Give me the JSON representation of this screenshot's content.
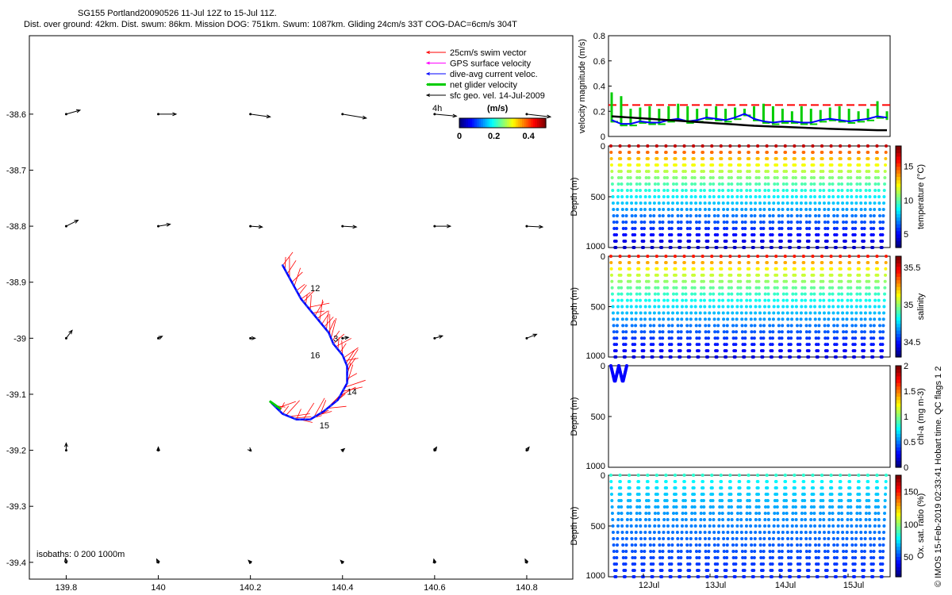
{
  "header": {
    "title": "SG155 Portland20090526 11-Jul 12Z to 15-Jul 11Z.",
    "stats": "Dist. over ground: 42km. Dist. swum: 86km. Mission DOG: 751km. Swum: 1087km. Gliding 24cm/s 33T COG-DAC=6cm/s 304T"
  },
  "credit": "© IMOS 15-Feb-2019 02:33:41 Hobart time. QC flags 1  2",
  "chart_data": [
    {
      "type": "map",
      "xticks": [
        "139.8",
        "140",
        "140.2",
        "140.4",
        "140.6",
        "140.8"
      ],
      "yticks": [
        "-38.6",
        "-38.7",
        "-38.8",
        "-38.9",
        "-39",
        "-39.1",
        "-39.2",
        "-39.3",
        "-39.4"
      ],
      "xlim": [
        139.72,
        140.9
      ],
      "ylim": [
        -39.43,
        -38.46
      ],
      "legend": {
        "position": "top-right",
        "entries": [
          {
            "label": "25cm/s swim vector",
            "color": "#ff0000"
          },
          {
            "label": "GPS surface velocity",
            "color": "#ff00ff"
          },
          {
            "label": "dive-avg current veloc.",
            "color": "#0000ff"
          },
          {
            "label": "net glider velocity",
            "color": "#00cc00"
          },
          {
            "label": "sfc geo. vel. 14-Jul-2009",
            "color": "#000000"
          }
        ]
      },
      "colorbar": {
        "label": "(m/s)",
        "prefix": "4h",
        "ticks": [
          "0",
          "0.2",
          "0.4"
        ],
        "range": [
          0,
          0.5
        ]
      },
      "isobaths": "isobaths: 0   200   1000m",
      "track_labels": [
        {
          "text": "12",
          "lon": 140.33,
          "lat": -38.91
        },
        {
          "text": "16",
          "lon": 140.33,
          "lat": -39.03
        },
        {
          "text": "3",
          "lon": 140.38,
          "lat": -39.0
        },
        {
          "text": "14",
          "lon": 140.41,
          "lat": -39.095
        },
        {
          "text": "15",
          "lon": 140.35,
          "lat": -39.155
        }
      ],
      "glider_track": [
        [
          140.27,
          -38.87
        ],
        [
          140.29,
          -38.9
        ],
        [
          140.31,
          -38.93
        ],
        [
          140.33,
          -38.95
        ],
        [
          140.35,
          -38.97
        ],
        [
          140.37,
          -38.99
        ],
        [
          140.38,
          -39.01
        ],
        [
          140.4,
          -39.03
        ],
        [
          140.41,
          -39.05
        ],
        [
          140.41,
          -39.08
        ],
        [
          140.39,
          -39.11
        ],
        [
          140.36,
          -39.13
        ],
        [
          140.33,
          -39.145
        ],
        [
          140.3,
          -39.145
        ],
        [
          140.27,
          -39.135
        ],
        [
          140.245,
          -39.115
        ]
      ],
      "geo_vectors": [
        {
          "lon": 139.8,
          "lat": -38.6,
          "u": 0.35,
          "v": 0.1
        },
        {
          "lon": 140.0,
          "lat": -38.6,
          "u": 0.45,
          "v": 0.0
        },
        {
          "lon": 140.2,
          "lat": -38.6,
          "u": 0.5,
          "v": -0.07
        },
        {
          "lon": 140.4,
          "lat": -38.6,
          "u": 0.6,
          "v": -0.1
        },
        {
          "lon": 140.6,
          "lat": -38.6,
          "u": 0.55,
          "v": -0.05
        },
        {
          "lon": 140.8,
          "lat": -38.6,
          "u": 0.6,
          "v": -0.07
        },
        {
          "lon": 139.8,
          "lat": -38.8,
          "u": 0.3,
          "v": 0.15
        },
        {
          "lon": 140.0,
          "lat": -38.8,
          "u": 0.3,
          "v": 0.05
        },
        {
          "lon": 140.2,
          "lat": -38.8,
          "u": 0.3,
          "v": -0.02
        },
        {
          "lon": 140.4,
          "lat": -38.8,
          "u": 0.35,
          "v": -0.02
        },
        {
          "lon": 140.6,
          "lat": -38.8,
          "u": 0.4,
          "v": 0.0
        },
        {
          "lon": 140.8,
          "lat": -38.8,
          "u": 0.4,
          "v": -0.02
        },
        {
          "lon": 139.8,
          "lat": -39.0,
          "u": 0.15,
          "v": 0.2
        },
        {
          "lon": 140.0,
          "lat": -39.0,
          "u": 0.1,
          "v": 0.05
        },
        {
          "lon": 140.2,
          "lat": -39.0,
          "u": 0.12,
          "v": 0.0
        },
        {
          "lon": 140.4,
          "lat": -39.0,
          "u": 0.15,
          "v": 0.02
        },
        {
          "lon": 140.6,
          "lat": -39.0,
          "u": 0.2,
          "v": 0.06
        },
        {
          "lon": 140.8,
          "lat": -39.0,
          "u": 0.25,
          "v": 0.1
        },
        {
          "lon": 139.8,
          "lat": -39.2,
          "u": 0.0,
          "v": 0.18
        },
        {
          "lon": 140.0,
          "lat": -39.2,
          "u": 0.0,
          "v": 0.08
        },
        {
          "lon": 140.2,
          "lat": -39.2,
          "u": 0.02,
          "v": -0.02
        },
        {
          "lon": 140.4,
          "lat": -39.2,
          "u": 0.05,
          "v": 0.04
        },
        {
          "lon": 140.6,
          "lat": -39.2,
          "u": 0.05,
          "v": 0.08
        },
        {
          "lon": 140.8,
          "lat": -39.2,
          "u": 0.06,
          "v": 0.08
        },
        {
          "lon": 139.8,
          "lat": -39.4,
          "u": -0.02,
          "v": 0.1
        },
        {
          "lon": 140.0,
          "lat": -39.4,
          "u": -0.04,
          "v": 0.08
        },
        {
          "lon": 140.2,
          "lat": -39.4,
          "u": -0.05,
          "v": 0.05
        },
        {
          "lon": 140.4,
          "lat": -39.4,
          "u": -0.05,
          "v": 0.05
        },
        {
          "lon": 140.6,
          "lat": -39.4,
          "u": -0.02,
          "v": 0.08
        },
        {
          "lon": 140.8,
          "lat": -39.4,
          "u": -0.04,
          "v": 0.08
        }
      ]
    },
    {
      "type": "line",
      "ylabel": "velocity magnitude (m/s)",
      "ylim": [
        0,
        0.8
      ],
      "yticks": [
        "0",
        "0.2",
        "0.4",
        "0.6",
        "0.8"
      ],
      "reference_level": 0.25,
      "series": [
        {
          "name": "dive-avg current",
          "color": "#0000ff",
          "values": [
            0.13,
            0.1,
            0.1,
            0.12,
            0.11,
            0.11,
            0.13,
            0.14,
            0.12,
            0.13,
            0.15,
            0.14,
            0.13,
            0.15,
            0.18,
            0.14,
            0.12,
            0.11,
            0.12,
            0.12,
            0.11,
            0.11,
            0.13,
            0.14,
            0.13,
            0.12,
            0.13,
            0.14,
            0.16,
            0.15
          ]
        },
        {
          "name": "geostrophic",
          "color": "#000000",
          "values": [
            0.16,
            0.155,
            0.15,
            0.145,
            0.14,
            0.135,
            0.13,
            0.125,
            0.12,
            0.115,
            0.11,
            0.105,
            0.1,
            0.095,
            0.09,
            0.085,
            0.082,
            0.079,
            0.076,
            0.073,
            0.07,
            0.067,
            0.064,
            0.061,
            0.058,
            0.056,
            0.054,
            0.052,
            0.05,
            0.05
          ]
        },
        {
          "name": "net glider velocity",
          "color": "#00cc00",
          "values": [
            0.35,
            0.32,
            0.22,
            0.23,
            0.24,
            0.22,
            0.24,
            0.26,
            0.24,
            0.22,
            0.22,
            0.24,
            0.22,
            0.23,
            0.22,
            0.24,
            0.26,
            0.24,
            0.22,
            0.2,
            0.24,
            0.22,
            0.21,
            0.23,
            0.24,
            0.22,
            0.2,
            0.22,
            0.28,
            0.2
          ]
        }
      ]
    },
    {
      "type": "scatter",
      "ylabel": "Depth (m)",
      "cbar_label": "temperature (°C)",
      "ylim": [
        0,
        1000
      ],
      "yticks": [
        "0",
        "500",
        "1000"
      ],
      "cbar_ticks": [
        "5",
        "10",
        "15"
      ],
      "cbar_range": [
        3,
        18
      ],
      "surface_value": 17,
      "bottom_value": 4,
      "max_depth": 1000,
      "n_dives": 30
    },
    {
      "type": "scatter",
      "ylabel": "Depth (m)",
      "cbar_label": "salinity",
      "ylim": [
        0,
        1000
      ],
      "yticks": [
        "0",
        "500",
        "1000"
      ],
      "cbar_ticks": [
        "34.5",
        "35",
        "35.5"
      ],
      "cbar_range": [
        34.3,
        35.65
      ],
      "surface_value": 35.45,
      "bottom_value": 34.42,
      "max_depth": 1000,
      "n_dives": 30
    },
    {
      "type": "scatter",
      "ylabel": "Depth (m)",
      "cbar_label": "chl-a (mg m-3)",
      "ylim": [
        0,
        1000
      ],
      "yticks": [
        "0",
        "500",
        "1000"
      ],
      "cbar_ticks": [
        "0",
        "0.5",
        "1",
        "1.5",
        "2"
      ],
      "cbar_range": [
        0,
        2
      ],
      "surface_value": 0.25,
      "bottom_value": 0.25,
      "max_depth": 150,
      "n_dives": 2
    },
    {
      "type": "scatter",
      "ylabel": "Depth (m)",
      "cbar_label": "Ox. sat. ratio (%)",
      "ylim": [
        0,
        1000
      ],
      "yticks": [
        "0",
        "500",
        "1000"
      ],
      "cbar_ticks": [
        "50",
        "100",
        "150"
      ],
      "cbar_range": [
        20,
        175
      ],
      "surface_value": 85,
      "bottom_value": 45,
      "max_depth": 1000,
      "n_dives": 30,
      "xticks": [
        "12Jul",
        "13Jul",
        "14Jul",
        "15Jul"
      ]
    }
  ]
}
